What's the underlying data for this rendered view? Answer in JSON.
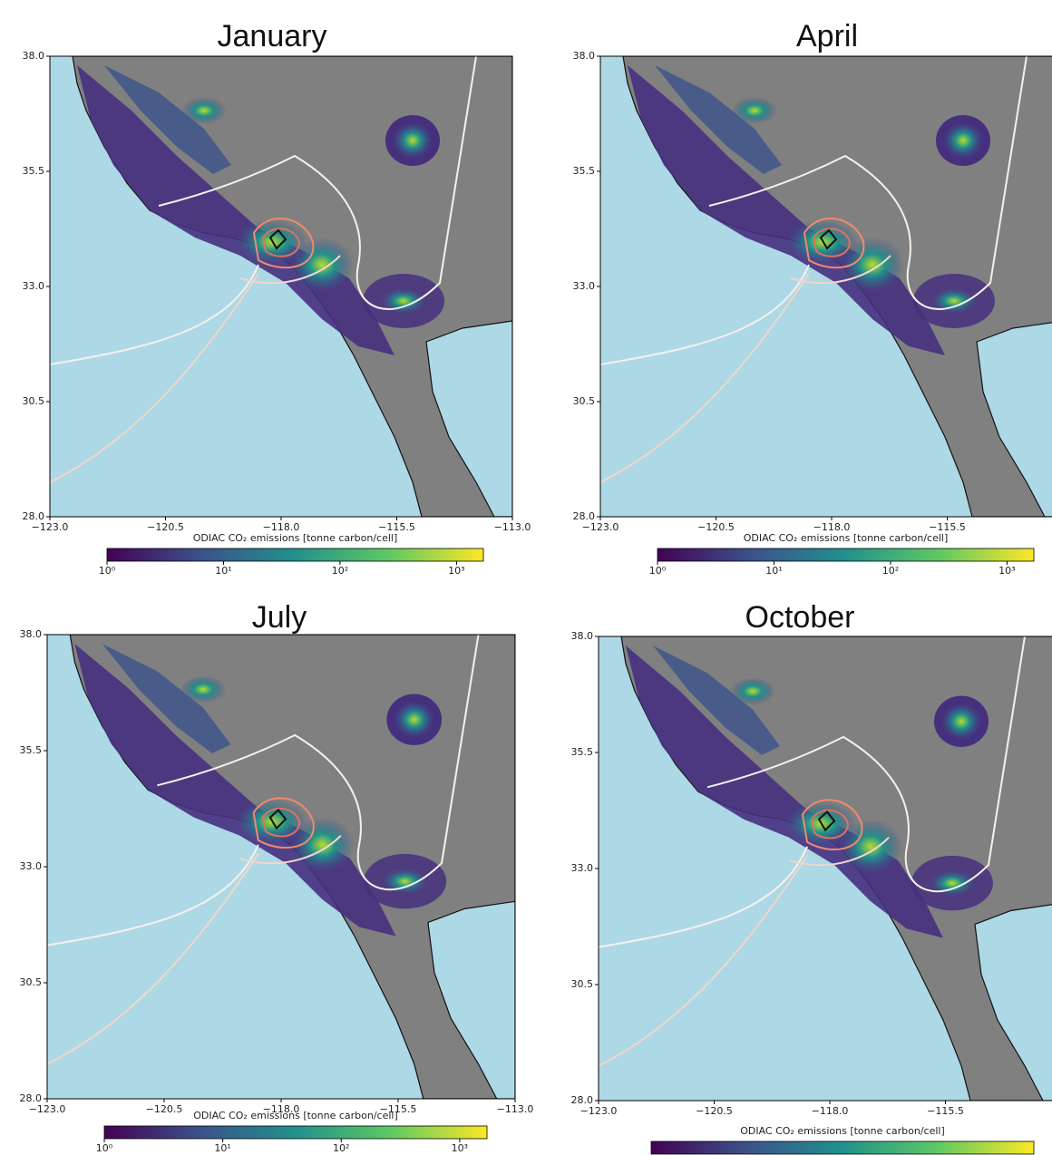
{
  "panels": [
    {
      "title": "January",
      "xlim": [
        -123,
        -113
      ],
      "ylim": [
        28,
        38
      ],
      "xticks": [
        {
          "value": -123,
          "label": "−123.0"
        },
        {
          "value": -120.5,
          "label": "−120.5"
        },
        {
          "value": -118,
          "label": "−118.0"
        },
        {
          "value": -115.5,
          "label": "−115.5"
        },
        {
          "value": -113,
          "label": "−113.0"
        }
      ],
      "yticks": [
        {
          "value": 28,
          "label": "28.0"
        },
        {
          "value": 30.5,
          "label": "30.5"
        },
        {
          "value": 33,
          "label": "33.0"
        },
        {
          "value": 35.5,
          "label": "35.5"
        },
        {
          "value": 38,
          "label": "38.0"
        }
      ],
      "colorbar": {
        "label": "ODIAC CO₂ emissions [tonne carbon/cell]",
        "clim": [
          1,
          1700
        ],
        "log": true,
        "ticks": [
          {
            "value": 1,
            "label": "10⁰"
          },
          {
            "value": 10,
            "label": "10¹"
          },
          {
            "value": 100,
            "label": "10²"
          },
          {
            "value": 1000,
            "label": "10³"
          }
        ]
      }
    },
    {
      "title": "April",
      "xlim": [
        -123,
        -113
      ],
      "ylim": [
        28,
        38
      ],
      "xticks": [
        {
          "value": -123,
          "label": "−123.0"
        },
        {
          "value": -120.5,
          "label": "−120.5"
        },
        {
          "value": -118,
          "label": "−118.0"
        },
        {
          "value": -115.5,
          "label": "−115.5"
        }
      ],
      "yticks": [
        {
          "value": 28,
          "label": "28.0"
        },
        {
          "value": 30.5,
          "label": "30.5"
        },
        {
          "value": 33,
          "label": "33.0"
        },
        {
          "value": 35.5,
          "label": "35.5"
        },
        {
          "value": 38,
          "label": "38.0"
        }
      ],
      "colorbar": {
        "label": "ODIAC CO₂ emissions [tonne carbon/cell]",
        "clim": [
          1,
          1700
        ],
        "log": true,
        "ticks": [
          {
            "value": 1,
            "label": "10⁰"
          },
          {
            "value": 10,
            "label": "10¹"
          },
          {
            "value": 100,
            "label": "10²"
          },
          {
            "value": 1000,
            "label": "10³"
          }
        ]
      }
    },
    {
      "title": "July",
      "xlim": [
        -123,
        -113
      ],
      "ylim": [
        28,
        38
      ],
      "xticks": [
        {
          "value": -123,
          "label": "−123.0"
        },
        {
          "value": -120.5,
          "label": "−120.5"
        },
        {
          "value": -118,
          "label": "−118.0"
        },
        {
          "value": -115.5,
          "label": "−115.5"
        },
        {
          "value": -113,
          "label": "−113.0"
        }
      ],
      "yticks": [
        {
          "value": 28,
          "label": "28.0"
        },
        {
          "value": 30.5,
          "label": "30.5"
        },
        {
          "value": 33,
          "label": "33.0"
        },
        {
          "value": 35.5,
          "label": "35.5"
        },
        {
          "value": 38,
          "label": "38.0"
        }
      ],
      "colorbar": {
        "label": "ODIAC CO₂ emissions [tonne carbon/cell]",
        "clim": [
          1,
          1700
        ],
        "log": true,
        "ticks": [
          {
            "value": 1,
            "label": "10⁰"
          },
          {
            "value": 10,
            "label": "10¹"
          },
          {
            "value": 100,
            "label": "10²"
          },
          {
            "value": 1000,
            "label": "10³"
          }
        ]
      }
    },
    {
      "title": "October",
      "xlim": [
        -123,
        -113
      ],
      "ylim": [
        28,
        38
      ],
      "xticks": [
        {
          "value": -123,
          "label": "−123.0"
        },
        {
          "value": -120.5,
          "label": "−120.5"
        },
        {
          "value": -118,
          "label": "−118.0"
        },
        {
          "value": -115.5,
          "label": "−115.5"
        }
      ],
      "yticks": [
        {
          "value": 28,
          "label": "28.0"
        },
        {
          "value": 30.5,
          "label": "30.5"
        },
        {
          "value": 33,
          "label": "33.0"
        },
        {
          "value": 35.5,
          "label": "35.5"
        },
        {
          "value": 38,
          "label": "38.0"
        }
      ],
      "colorbar": {
        "label": "ODIAC CO₂ emissions [tonne carbon/cell]",
        "clim": [
          1,
          1700
        ],
        "log": true,
        "ticks": []
      }
    }
  ]
}
